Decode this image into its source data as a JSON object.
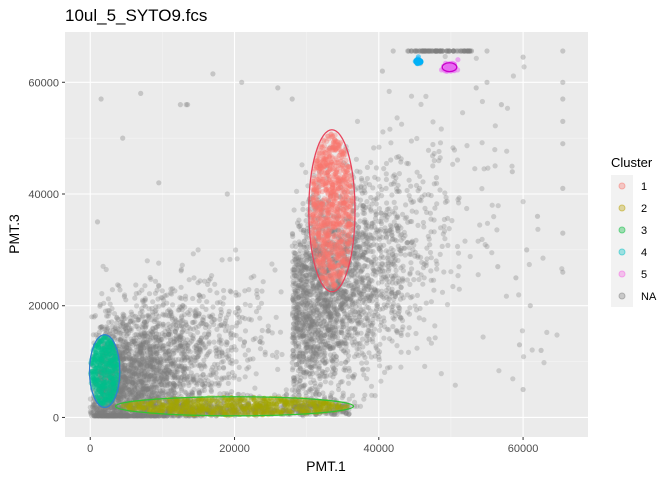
{
  "chart_data": {
    "type": "scatter",
    "title": "10ul_5_SYTO9.fcs",
    "xlabel": "PMT.1",
    "ylabel": "PMT.3",
    "xlim": [
      -3500,
      69000
    ],
    "ylim": [
      -3500,
      69000
    ],
    "x_ticks": [
      0,
      20000,
      40000,
      60000
    ],
    "x_tick_labels": [
      "0",
      "20000",
      "40000",
      "60000"
    ],
    "y_ticks": [
      0,
      20000,
      40000,
      60000
    ],
    "y_tick_labels": [
      "0",
      "20000",
      "40000",
      "60000"
    ],
    "grid": true,
    "legend": {
      "title": "Cluster",
      "placement": "right",
      "entries": [
        {
          "label": "1",
          "color": "#f8766d"
        },
        {
          "label": "2",
          "color": "#b79f00"
        },
        {
          "label": "3",
          "color": "#00ba38"
        },
        {
          "label": "4",
          "color": "#00bfc4"
        },
        {
          "label": "5",
          "color": "#f564e3"
        },
        {
          "label": "NA",
          "color": "#7f7f7f"
        }
      ]
    },
    "clusters": [
      {
        "label": "1",
        "color": "#f8766d",
        "ellipse_color": "#e8435b",
        "center": [
          33500,
          37000
        ],
        "radii": [
          3200,
          14500
        ],
        "count": 900,
        "style": "normal"
      },
      {
        "label": "2",
        "color": "#a3a500",
        "ellipse_color": "#31c332",
        "center": [
          20000,
          2000
        ],
        "radii": [
          16500,
          1700
        ],
        "count": 700,
        "style": "normal"
      },
      {
        "label": "3",
        "color": "#00c08b",
        "ellipse_color": "#2f7fd0",
        "center": [
          2000,
          8300
        ],
        "radii": [
          2100,
          6500
        ],
        "count": 500,
        "style": "normal"
      },
      {
        "label": "4",
        "color": "#00b0f6",
        "ellipse_color": "#00b0f6",
        "center": [
          45500,
          63700
        ],
        "radii": [
          600,
          600
        ],
        "count": 20,
        "style": "tight"
      },
      {
        "label": "5",
        "color": "#e76bf3",
        "ellipse_color": "#c800c8",
        "center": [
          49800,
          62700
        ],
        "radii": [
          1000,
          800
        ],
        "count": 60,
        "style": "tight"
      }
    ],
    "na_points": [
      {
        "x": 7000,
        "y": 58000
      },
      {
        "x": 1500,
        "y": 57000
      },
      {
        "x": 17000,
        "y": 61500
      },
      {
        "x": 12500,
        "y": 56000
      },
      {
        "x": 13300,
        "y": 56000
      },
      {
        "x": 21000,
        "y": 60000
      },
      {
        "x": 26000,
        "y": 59000
      },
      {
        "x": 28000,
        "y": 57000
      },
      {
        "x": 13500,
        "y": 56000
      },
      {
        "x": 4500,
        "y": 50000
      },
      {
        "x": 1000,
        "y": 35000
      },
      {
        "x": 44000,
        "y": 65600
      },
      {
        "x": 46500,
        "y": 65600
      },
      {
        "x": 48000,
        "y": 65600
      },
      {
        "x": 52500,
        "y": 65600
      },
      {
        "x": 55000,
        "y": 65600
      },
      {
        "x": 60000,
        "y": 64500
      },
      {
        "x": 65500,
        "y": 65600
      },
      {
        "x": 65500,
        "y": 60000
      },
      {
        "x": 65500,
        "y": 57000
      },
      {
        "x": 65500,
        "y": 53000
      },
      {
        "x": 65500,
        "y": 49000
      },
      {
        "x": 65500,
        "y": 41000
      },
      {
        "x": 65500,
        "y": 33000
      },
      {
        "x": 65500,
        "y": 26000
      },
      {
        "x": 62000,
        "y": 36000
      },
      {
        "x": 59000,
        "y": 25000
      },
      {
        "x": 56500,
        "y": 27000
      },
      {
        "x": 61000,
        "y": 20000
      },
      {
        "x": 59500,
        "y": 13000
      },
      {
        "x": 62500,
        "y": 12000
      },
      {
        "x": 60500,
        "y": 30000
      },
      {
        "x": 58500,
        "y": 44000
      },
      {
        "x": 57000,
        "y": 56000
      },
      {
        "x": 55000,
        "y": 60000
      },
      {
        "x": 53500,
        "y": 59000
      },
      {
        "x": 42000,
        "y": 65600
      },
      {
        "x": 40500,
        "y": 62000
      },
      {
        "x": 19000,
        "y": 40000
      },
      {
        "x": 9500,
        "y": 42000
      },
      {
        "x": 60000,
        "y": 5000
      }
    ]
  }
}
